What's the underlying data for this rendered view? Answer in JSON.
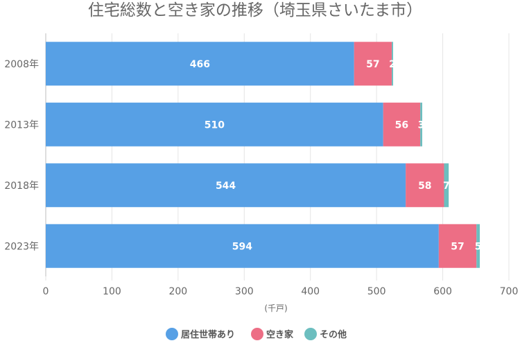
{
  "chart_data": {
    "type": "bar",
    "orientation": "horizontal",
    "stacked": true,
    "title": "住宅総数と空き家の推移（埼玉県さいたま市）",
    "categories": [
      "2008年",
      "2013年",
      "2018年",
      "2023年"
    ],
    "series": [
      {
        "name": "居住世帯あり",
        "values": [
          466,
          510,
          544,
          594
        ],
        "color": "#57A0E5"
      },
      {
        "name": "空き家",
        "values": [
          57,
          56,
          58,
          57
        ],
        "color": "#ED6E85"
      },
      {
        "name": "その他",
        "values": [
          2,
          3,
          7,
          5
        ],
        "color": "#6CBEBF"
      }
    ],
    "xlabel": "(千戸)",
    "ylabel": "",
    "xlim": [
      0,
      700
    ],
    "xticks": [
      "0",
      "100",
      "200",
      "300",
      "400",
      "500",
      "600",
      "700"
    ],
    "grid": "vertical",
    "legend_position": "bottom"
  }
}
